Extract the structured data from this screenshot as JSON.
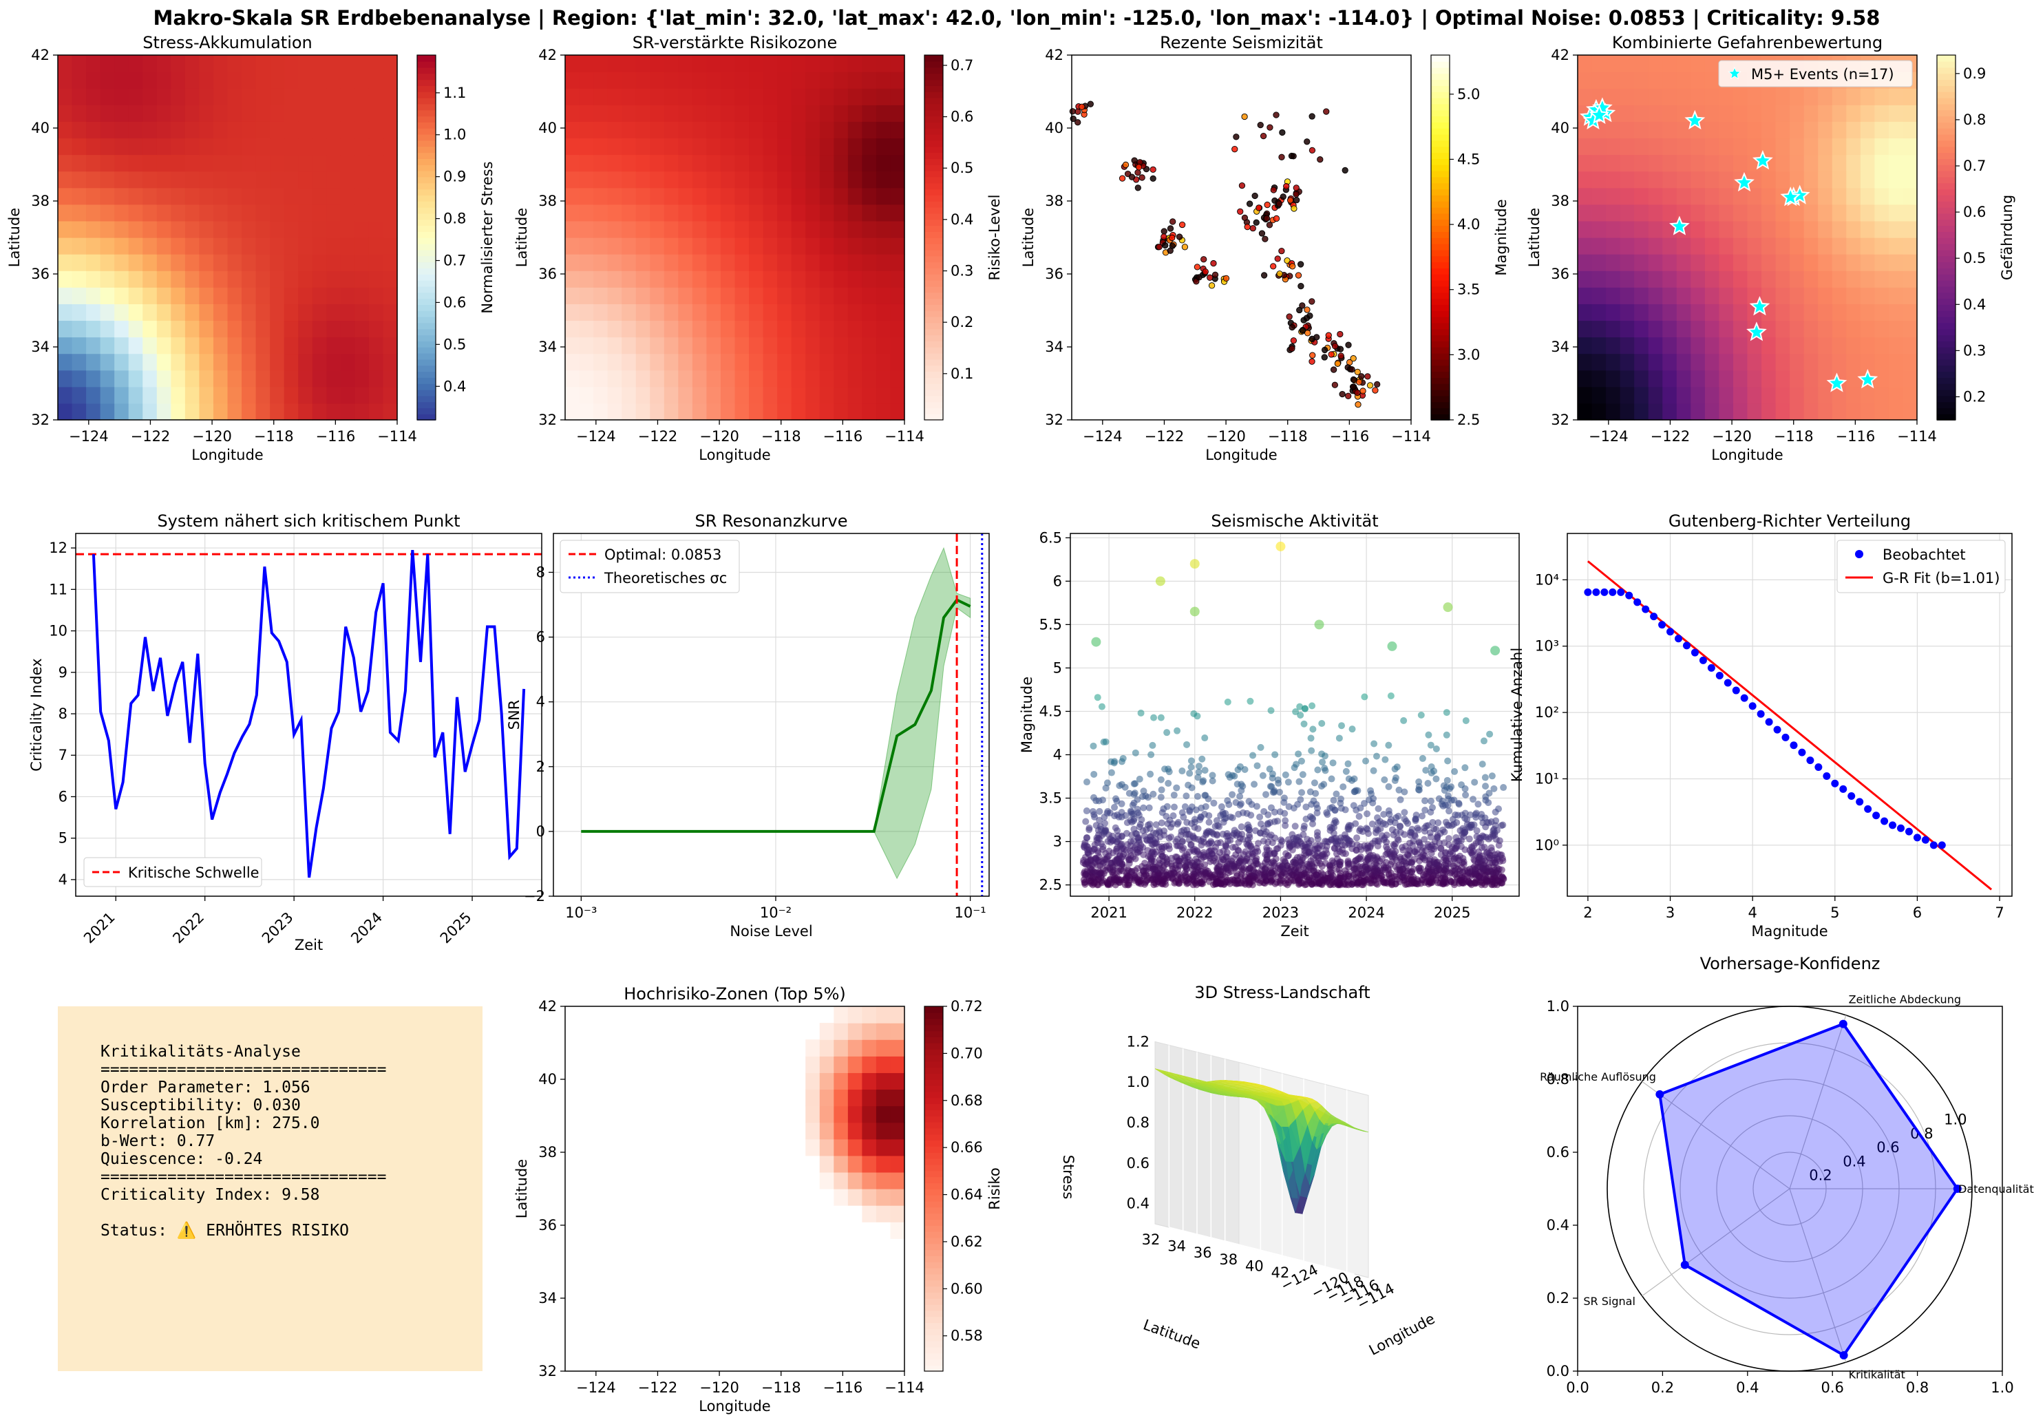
{
  "suptitle": "Makro-Skala SR Erdbebenanalyse | Region: {'lat_min': 32.0, 'lat_max': 42.0, 'lon_min': -125.0, 'lon_max': -114.0} | Optimal Noise: 0.0853 | Criticality: 9.58",
  "chart_data": [
    {
      "id": "stress",
      "type": "heatmap",
      "title": "Stress-Akkumulation",
      "xlabel": "Longitude",
      "ylabel": "Latitude",
      "xlim": [
        -125,
        -114
      ],
      "ylim": [
        32,
        42
      ],
      "xticks": [
        -124,
        -122,
        -120,
        -118,
        -116,
        -114
      ],
      "yticks": [
        32,
        34,
        36,
        38,
        40,
        42
      ],
      "colorbar": {
        "label": "Normalisierter Stress",
        "range": [
          0.32,
          1.19
        ],
        "ticks": [
          0.4,
          0.5,
          0.6,
          0.7,
          0.8,
          0.9,
          1.0,
          1.1
        ],
        "colormap": "RdYlBu_r"
      },
      "grid_size": [
        22,
        24
      ],
      "field": {
        "base": 1.1,
        "lows": [
          {
            "lon": -125,
            "lat": 32,
            "depth": 0.78,
            "spread": 3.0
          }
        ],
        "highs": [
          {
            "lon": -116,
            "lat": 33.3,
            "amp": 0.06,
            "spread": 1.5
          },
          {
            "lon": -123,
            "lat": 41,
            "amp": 0.06,
            "spread": 2.0
          }
        ]
      }
    },
    {
      "id": "risk",
      "type": "heatmap",
      "title": "SR-verstärkte Risikozone",
      "xlabel": "Longitude",
      "ylabel": "Latitude",
      "xlim": [
        -125,
        -114
      ],
      "ylim": [
        32,
        42
      ],
      "xticks": [
        -124,
        -122,
        -120,
        -118,
        -116,
        -114
      ],
      "yticks": [
        32,
        34,
        36,
        38,
        40,
        42
      ],
      "colorbar": {
        "label": "Risiko-Level",
        "range": [
          0.01,
          0.72
        ],
        "ticks": [
          0.1,
          0.2,
          0.3,
          0.4,
          0.5,
          0.6,
          0.7
        ],
        "colormap": "Reds"
      },
      "grid_size": [
        22,
        24
      ],
      "field": {
        "base": 0.55,
        "lows": [
          {
            "lon": -125,
            "lat": 32,
            "depth": 0.55,
            "spread": 4.0
          }
        ],
        "highs": [
          {
            "lon": -114.5,
            "lat": 39.0,
            "amp": 0.17,
            "spread": 1.6
          }
        ]
      }
    },
    {
      "id": "seismicity",
      "type": "scatter",
      "title": "Rezente Seismizität",
      "xlabel": "Longitude",
      "ylabel": "Latitude",
      "xlim": [
        -125,
        -114
      ],
      "ylim": [
        32,
        42
      ],
      "xticks": [
        -124,
        -122,
        -120,
        -118,
        -116,
        -114
      ],
      "yticks": [
        32,
        34,
        36,
        38,
        40,
        42
      ],
      "colorbar": {
        "label": "Magnitude",
        "range": [
          2.5,
          5.3
        ],
        "ticks": [
          2.5,
          3.0,
          3.5,
          4.0,
          4.5,
          5.0
        ],
        "colormap": "hot"
      },
      "clusters": [
        {
          "lon": -124.7,
          "lat": 40.4,
          "count": 14,
          "spread": 0.25
        },
        {
          "lon": -122.8,
          "lat": 38.8,
          "count": 20,
          "spread": 0.3
        },
        {
          "lon": -121.8,
          "lat": 37.0,
          "count": 22,
          "spread": 0.3
        },
        {
          "lon": -120.7,
          "lat": 36.0,
          "count": 18,
          "spread": 0.3
        },
        {
          "lon": -118.8,
          "lat": 37.6,
          "count": 26,
          "spread": 0.35
        },
        {
          "lon": -118.0,
          "lat": 38.1,
          "count": 18,
          "spread": 0.25
        },
        {
          "lon": -118.0,
          "lat": 36.2,
          "count": 16,
          "spread": 0.35
        },
        {
          "lon": -117.5,
          "lat": 34.6,
          "count": 24,
          "spread": 0.35
        },
        {
          "lon": -116.5,
          "lat": 33.8,
          "count": 26,
          "spread": 0.35
        },
        {
          "lon": -115.6,
          "lat": 32.9,
          "count": 26,
          "spread": 0.3
        },
        {
          "lon": -118.0,
          "lat": 39.5,
          "count": 18,
          "spread": 0.8
        }
      ]
    },
    {
      "id": "hazard",
      "type": "heatmap",
      "title": "Kombinierte Gefahrenbewertung",
      "xlabel": "Longitude",
      "ylabel": "Latitude",
      "xlim": [
        -125,
        -114
      ],
      "ylim": [
        32,
        42
      ],
      "xticks": [
        -124,
        -122,
        -120,
        -118,
        -116,
        -114
      ],
      "yticks": [
        32,
        34,
        36,
        38,
        40,
        42
      ],
      "colorbar": {
        "label": "Gefährdung",
        "range": [
          0.15,
          0.94
        ],
        "ticks": [
          0.2,
          0.3,
          0.4,
          0.5,
          0.6,
          0.7,
          0.8,
          0.9
        ],
        "colormap": "magma"
      },
      "grid_size": [
        22,
        24
      ],
      "field": {
        "base": 0.75,
        "lows": [
          {
            "lon": -125,
            "lat": 32,
            "depth": 0.6,
            "spread": 3.5
          }
        ],
        "highs": [
          {
            "lon": -114.5,
            "lat": 38.8,
            "amp": 0.2,
            "spread": 1.8
          }
        ]
      },
      "legend": "M5+ Events (n=17)",
      "events": [
        {
          "lon": -124.6,
          "lat": 40.3
        },
        {
          "lon": -124.4,
          "lat": 40.5
        },
        {
          "lon": -124.1,
          "lat": 40.4
        },
        {
          "lon": -124.5,
          "lat": 40.2
        },
        {
          "lon": -124.2,
          "lat": 40.55
        },
        {
          "lon": -121.2,
          "lat": 40.2
        },
        {
          "lon": -119.0,
          "lat": 39.1
        },
        {
          "lon": -119.6,
          "lat": 38.5
        },
        {
          "lon": -118.0,
          "lat": 38.1
        },
        {
          "lon": -117.8,
          "lat": 38.15
        },
        {
          "lon": -121.7,
          "lat": 37.3
        },
        {
          "lon": -119.1,
          "lat": 35.1
        },
        {
          "lon": -119.2,
          "lat": 34.4
        },
        {
          "lon": -116.6,
          "lat": 33.0
        },
        {
          "lon": -115.6,
          "lat": 33.1
        },
        {
          "lon": -118.1,
          "lat": 38.1
        },
        {
          "lon": -124.3,
          "lat": 40.35
        }
      ]
    },
    {
      "id": "criticality",
      "type": "line",
      "title": "System nähert sich kritischem Punkt",
      "xlabel": "Zeit",
      "ylabel": "Criticality Index",
      "xlim": [
        2020.55,
        2025.78
      ],
      "ylim": [
        3.6,
        12.35
      ],
      "xticks": [
        2021,
        2022,
        2023,
        2024,
        2025
      ],
      "xticklabels": [
        "2021",
        "2022",
        "2023",
        "2024",
        "2025"
      ],
      "yticks": [
        4,
        5,
        6,
        7,
        8,
        9,
        10,
        11,
        12
      ],
      "threshold": 11.85,
      "legend": "Kritische Schwelle",
      "x": [
        2020.75,
        2020.83,
        2020.92,
        2021.0,
        2021.08,
        2021.17,
        2021.25,
        2021.33,
        2021.42,
        2021.5,
        2021.58,
        2021.67,
        2021.75,
        2021.83,
        2021.92,
        2022.0,
        2022.08,
        2022.17,
        2022.25,
        2022.33,
        2022.42,
        2022.5,
        2022.58,
        2022.67,
        2022.75,
        2022.83,
        2022.92,
        2023.0,
        2023.08,
        2023.17,
        2023.25,
        2023.33,
        2023.42,
        2023.5,
        2023.58,
        2023.67,
        2023.75,
        2023.83,
        2023.92,
        2024.0,
        2024.08,
        2024.17,
        2024.25,
        2024.33,
        2024.42,
        2024.5,
        2024.58,
        2024.67,
        2024.75,
        2024.83,
        2024.92,
        2025.0,
        2025.08,
        2025.17,
        2025.25,
        2025.33,
        2025.42,
        2025.5,
        2025.58
      ],
      "y": [
        11.85,
        8.05,
        7.35,
        5.7,
        6.35,
        8.25,
        8.45,
        9.85,
        8.55,
        9.35,
        7.95,
        8.75,
        9.25,
        7.3,
        9.45,
        6.8,
        5.45,
        6.1,
        6.55,
        7.05,
        7.45,
        7.75,
        8.45,
        11.55,
        9.95,
        9.75,
        9.25,
        7.5,
        7.85,
        4.05,
        5.25,
        6.2,
        7.65,
        8.05,
        10.1,
        9.35,
        8.05,
        8.55,
        10.45,
        11.15,
        7.55,
        7.35,
        8.55,
        11.95,
        9.25,
        11.85,
        6.95,
        7.55,
        5.1,
        8.4,
        6.6,
        7.25,
        7.85,
        10.1,
        10.1,
        8.0,
        4.55,
        4.75,
        8.6
      ]
    },
    {
      "id": "resonance",
      "type": "line",
      "title": "SR Resonanzkurve",
      "xlabel": "Noise Level",
      "ylabel": "SNR",
      "xscale": "log",
      "xlim": [
        0.00072,
        0.125
      ],
      "ylim": [
        -2,
        9.2
      ],
      "xticks": [
        0.001,
        0.01,
        0.1
      ],
      "xticklabels": [
        "10⁻³",
        "10⁻²",
        "10⁻¹"
      ],
      "yticks": [
        -2,
        0,
        2,
        4,
        6,
        8
      ],
      "x": [
        0.001,
        0.0016,
        0.0025,
        0.004,
        0.0063,
        0.01,
        0.016,
        0.025,
        0.032,
        0.042,
        0.052,
        0.063,
        0.073,
        0.0853,
        0.1
      ],
      "y": [
        0,
        0,
        0,
        0,
        0,
        0,
        0,
        0,
        0,
        2.95,
        3.3,
        4.35,
        6.6,
        7.15,
        6.95
      ],
      "band_low": [
        0,
        0,
        0,
        0,
        0,
        0,
        0,
        0,
        0,
        -1.45,
        -0.4,
        1.3,
        5.1,
        6.9,
        6.6
      ],
      "band_high": [
        0,
        0,
        0,
        0,
        0,
        0,
        0,
        0,
        0,
        4.25,
        6.6,
        7.9,
        8.75,
        7.35,
        7.2
      ],
      "optimal": 0.0853,
      "theoretical": 0.115,
      "legend": [
        "Optimal: 0.0853",
        "Theoretisches σc"
      ]
    },
    {
      "id": "activity",
      "type": "scatter",
      "title": "Seismische Aktivität",
      "xlabel": "Zeit",
      "ylabel": "Magnitude",
      "xlim": [
        2020.55,
        2025.78
      ],
      "ylim": [
        2.37,
        6.55
      ],
      "xticks": [
        2021,
        2022,
        2023,
        2024,
        2025
      ],
      "xticklabels": [
        "2021",
        "2022",
        "2023",
        "2024",
        "2025"
      ],
      "yticks": [
        2.5,
        3.0,
        3.5,
        4.0,
        4.5,
        5.0,
        5.5,
        6.0,
        6.5
      ],
      "colormap": "viridis",
      "crange": [
        2.5,
        6.4
      ],
      "highlights": [
        {
          "x": 2021.6,
          "y": 6.0
        },
        {
          "x": 2022.0,
          "y": 6.2
        },
        {
          "x": 2022.0,
          "y": 5.65
        },
        {
          "x": 2023.0,
          "y": 6.4
        },
        {
          "x": 2024.95,
          "y": 5.7
        },
        {
          "x": 2020.85,
          "y": 5.3
        },
        {
          "x": 2023.45,
          "y": 5.5
        },
        {
          "x": 2025.5,
          "y": 5.2
        },
        {
          "x": 2024.3,
          "y": 5.25
        }
      ]
    },
    {
      "id": "gutenberg",
      "type": "scatter",
      "title": "Gutenberg-Richter Verteilung",
      "xlabel": "Magnitude",
      "ylabel": "Kumulative Anzahl",
      "yscale": "log",
      "xlim": [
        1.75,
        7.15
      ],
      "ylim": [
        0.17,
        50000
      ],
      "xticks": [
        2,
        3,
        4,
        5,
        6,
        7
      ],
      "yticks": [
        1,
        10,
        100,
        1000,
        10000
      ],
      "yticklabels": [
        "10⁰",
        "10¹",
        "10²",
        "10³",
        "10⁴"
      ],
      "x": [
        2.0,
        2.1,
        2.2,
        2.3,
        2.4,
        2.5,
        2.6,
        2.7,
        2.8,
        2.9,
        3.0,
        3.1,
        3.2,
        3.3,
        3.4,
        3.5,
        3.6,
        3.7,
        3.8,
        3.9,
        4.0,
        4.1,
        4.2,
        4.3,
        4.4,
        4.5,
        4.6,
        4.7,
        4.8,
        4.9,
        5.0,
        5.1,
        5.2,
        5.3,
        5.4,
        5.5,
        5.6,
        5.7,
        5.8,
        5.9,
        6.0,
        6.1,
        6.2,
        6.3
      ],
      "y": [
        6500,
        6500,
        6500,
        6500,
        6500,
        5800,
        4600,
        3600,
        2800,
        2100,
        1650,
        1300,
        1020,
        800,
        610,
        470,
        360,
        280,
        215,
        165,
        125,
        95,
        72,
        55,
        42,
        32,
        25,
        19,
        15,
        11,
        8.5,
        7,
        5.5,
        4.5,
        3.5,
        2.8,
        2.3,
        2,
        1.8,
        1.6,
        1.3,
        1.2,
        1,
        1
      ],
      "fit_a": 6.3,
      "fit_b": 1.01,
      "fit_range": [
        2.0,
        6.9
      ],
      "legend": [
        "Beobachtet",
        "G-R Fit (b=1.01)"
      ]
    },
    {
      "id": "highrisk",
      "type": "heatmap",
      "title": "Hochrisiko-Zonen (Top 5%)",
      "xlabel": "Longitude",
      "ylabel": "Latitude",
      "xlim": [
        -125,
        -114
      ],
      "ylim": [
        32,
        42
      ],
      "xticks": [
        -124,
        -122,
        -120,
        -118,
        -116,
        -114
      ],
      "yticks": [
        32,
        34,
        36,
        38,
        40,
        42
      ],
      "colorbar": {
        "label": "Risiko",
        "range": [
          0.565,
          0.72
        ],
        "ticks": [
          0.58,
          0.6,
          0.62,
          0.64,
          0.66,
          0.68,
          0.7,
          0.72
        ],
        "colormap": "Reds"
      },
      "grid_size": [
        22,
        24
      ],
      "threshold": 0.565,
      "field": {
        "base": 0.55,
        "lows": [
          {
            "lon": -125,
            "lat": 32,
            "depth": 0.55,
            "spread": 4.0
          }
        ],
        "highs": [
          {
            "lon": -114.5,
            "lat": 39.0,
            "amp": 0.17,
            "spread": 1.6
          }
        ]
      }
    },
    {
      "id": "surface",
      "type": "surface",
      "title": "3D Stress-Landschaft",
      "xlabel": "Longitude",
      "ylabel": "Latitude",
      "zlabel": "Stress",
      "lon_ticks": [
        -124,
        -120,
        -118,
        -116,
        -114
      ],
      "lat_ticks": [
        32,
        34,
        36,
        38,
        40,
        42
      ],
      "z_ticks": [
        0.4,
        0.6,
        0.8,
        1.0,
        1.2
      ],
      "zlim": [
        0.32,
        1.25
      ],
      "colormap": "viridis"
    },
    {
      "id": "radar",
      "type": "radar",
      "title": "Vorhersage-Konfidenz",
      "categories": [
        "Datenqualität",
        "Zeitliche Abdeckung",
        "Räumliche Auflösung",
        "SR Signal",
        "Kritikalität"
      ],
      "values": [
        0.92,
        0.95,
        0.88,
        0.71,
        0.96
      ],
      "r_ticks": [
        0.2,
        0.4,
        0.6,
        0.8,
        1.0
      ],
      "cart_ticks": [
        0.0,
        0.2,
        0.4,
        0.6,
        0.8,
        1.0
      ]
    }
  ],
  "analysis_box": {
    "lines": [
      "Kritikalitäts-Analyse",
      "==============================",
      "Order Parameter: 1.056",
      "Susceptibility: 0.030",
      "Korrelation [km]: 275.0",
      "b-Wert: 0.77",
      "Quiescence: -0.24",
      "==============================",
      "Criticality Index: 9.58",
      "",
      "Status: ⚠️ ERHÖHTES RISIKO"
    ]
  }
}
